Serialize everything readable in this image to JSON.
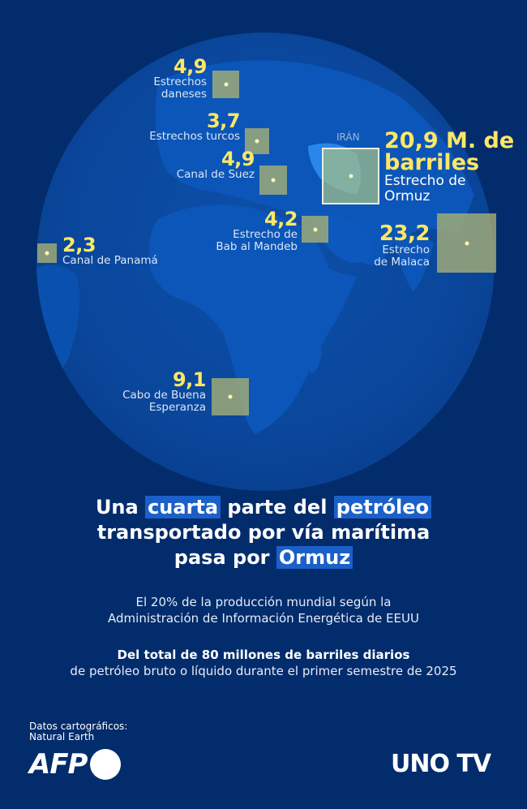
{
  "map": {
    "country_label": "IRÁN",
    "unit_label": "M. de barriles",
    "chokepoints": [
      {
        "id": "estrechos-daneses",
        "value": "4,9",
        "name_lines": [
          "Estrechos",
          "daneses"
        ]
      },
      {
        "id": "estrechos-turcos",
        "value": "3,7",
        "name_lines": [
          "Estrechos turcos"
        ]
      },
      {
        "id": "canal-de-suez",
        "value": "4,9",
        "name_lines": [
          "Canal de Suez"
        ]
      },
      {
        "id": "estrecho-de-ormuz",
        "value": "20,9 M. de",
        "value_line2": "barriles",
        "name_lines": [
          "Estrecho de",
          "Ormuz"
        ]
      },
      {
        "id": "estrecho-de-bab-al-mandeb",
        "value": "4,2",
        "name_lines": [
          "Estrecho de",
          "Bab al Mandeb"
        ]
      },
      {
        "id": "estrecho-de-malaca",
        "value": "23,2",
        "name_lines": [
          "Estrecho",
          "de Malaca"
        ]
      },
      {
        "id": "canal-de-panama",
        "value": "2,3",
        "name_lines": [
          "Canal de Panamá"
        ]
      },
      {
        "id": "cabo-de-buena-esperanza",
        "value": "9,1",
        "name_lines": [
          "Cabo de Buena",
          "Esperanza"
        ]
      }
    ]
  },
  "headline": {
    "parts": [
      "Una ",
      "cuarta",
      " parte del ",
      "petróleo",
      "transportado por vía marítima",
      "pasa por ",
      "Ormuz"
    ]
  },
  "subtitle": {
    "line1": "El 20% de la producción mundial según la",
    "line2": "Administración de Información Energética de EEUU"
  },
  "note": {
    "bold": "Del total de 80 millones de barriles diarios",
    "line2": "de petróleo bruto o líquido durante el primer semestre de 2025"
  },
  "credits": {
    "line1": "Datos cartográficos:",
    "line2": "Natural Earth",
    "afp": "AFP",
    "uno_tv": "UNO TV"
  },
  "colors": {
    "background": "#022c6c",
    "value_yellow": "#ffe766",
    "highlight_blue": "#1b60c8",
    "box_olive": "#acb274"
  }
}
